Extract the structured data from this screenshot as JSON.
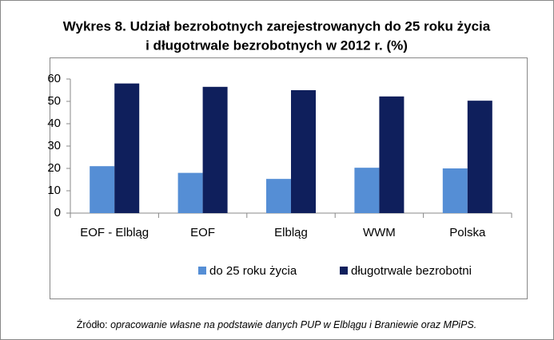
{
  "chart_data": {
    "type": "bar",
    "title": [
      "Wykres 8. Udział bezrobotnych zarejestrowanych do 25 roku życia",
      "i długotrwale bezrobotnych w 2012 r. (%)"
    ],
    "categories": [
      "EOF - Elbląg",
      "EOF",
      "Elbląg",
      "WWM",
      "Polska"
    ],
    "series": [
      {
        "name": "do 25 roku życia",
        "color": "#558ed5",
        "values": [
          21,
          18,
          15.3,
          20.3,
          20
        ]
      },
      {
        "name": "długotrwale bezrobotni",
        "color": "#0f1f5c",
        "values": [
          58,
          56.5,
          55,
          52.2,
          50.3
        ]
      }
    ],
    "ylim": [
      0,
      60
    ],
    "yticks": [
      0,
      10,
      20,
      30,
      40,
      50,
      60
    ],
    "grid": false,
    "legend": "bottom",
    "source_label": "Źródło:",
    "source_text": "opracowanie własne na podstawie danych PUP w Elblągu i Braniewie oraz MPiPS."
  }
}
